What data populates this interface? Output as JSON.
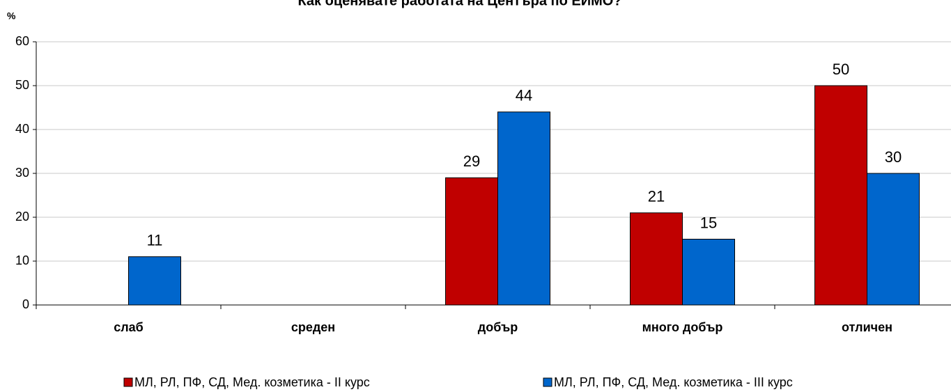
{
  "chart_data": {
    "type": "bar",
    "title": "Как оценявате работата на Центъра по ЕИМО?",
    "ylabel": "%",
    "categories": [
      "слаб",
      "среден",
      "добър",
      "много добър",
      "отличен"
    ],
    "series": [
      {
        "name": "МЛ, РЛ, ПФ, СД, Мед. козметика - II курс",
        "color": "#c00000",
        "values": [
          null,
          null,
          29,
          21,
          50
        ]
      },
      {
        "name": "МЛ, РЛ, ПФ, СД, Мед. козметика - III курс",
        "color": "#0066cc",
        "values": [
          11,
          null,
          44,
          15,
          30
        ]
      }
    ],
    "ylim": [
      0,
      60
    ],
    "yticks": [
      0,
      10,
      20,
      30,
      40,
      50,
      60
    ],
    "grid": true,
    "legend": "bottom"
  }
}
